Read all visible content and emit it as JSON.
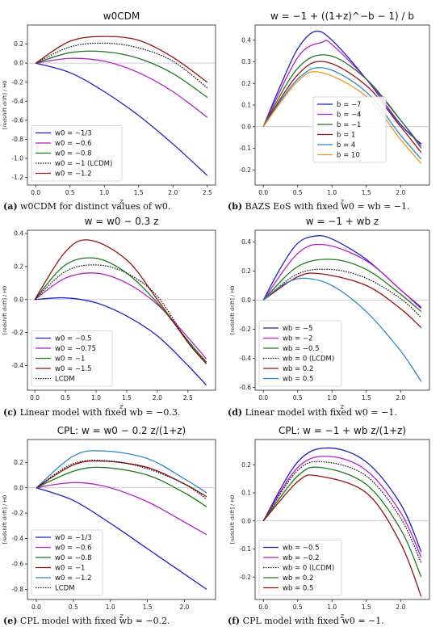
{
  "captions": [
    {
      "letter": "(a)",
      "text": "w0CDM for distinct values of w0."
    },
    {
      "letter": "(b)",
      "text": "BAZS EoS with fixed w0 = wb = −1."
    },
    {
      "letter": "(c)",
      "text": "Linear model with fixed wb = −0.3."
    },
    {
      "letter": "(d)",
      "text": "Linear model with fixed w0 = −1."
    },
    {
      "letter": "(e)",
      "text": "CPL model with fixed wb = −0.2."
    },
    {
      "letter": "(f)",
      "text": "CPL model with fixed w0 = −1."
    }
  ],
  "chart_data": [
    {
      "type": "line",
      "title": "w0CDM",
      "xlabel": "z",
      "ylabel": "[redshift drift] / H0",
      "xlim": [
        -0.12,
        2.62
      ],
      "ylim": [
        -1.28,
        0.4
      ],
      "xticks": [
        0.0,
        0.5,
        1.0,
        1.5,
        2.0,
        2.5
      ],
      "yticks": [
        -1.2,
        -1.0,
        -0.8,
        -0.6,
        -0.4,
        -0.2,
        0.0,
        0.2
      ],
      "legend": "lower-left",
      "series": [
        {
          "name": "w0 = −1/3",
          "color": "#1f1fc8",
          "dash": false,
          "x": [
            0,
            0.5,
            1.0,
            1.5,
            2.0,
            2.5
          ],
          "y": [
            0,
            -0.1,
            -0.3,
            -0.55,
            -0.85,
            -1.18
          ]
        },
        {
          "name": "w0 = −0.6",
          "color": "#b41ec8",
          "dash": false,
          "x": [
            0,
            0.5,
            1.0,
            1.5,
            2.0,
            2.5
          ],
          "y": [
            0,
            0.05,
            0.02,
            -0.1,
            -0.3,
            -0.57
          ]
        },
        {
          "name": "w0 = −0.8",
          "color": "#1e781e",
          "dash": false,
          "x": [
            0,
            0.5,
            1.0,
            1.5,
            2.0,
            2.5
          ],
          "y": [
            0,
            0.11,
            0.12,
            0.05,
            -0.11,
            -0.36
          ]
        },
        {
          "name": "w0 = −1 (LCDM)",
          "color": "#111111",
          "dash": true,
          "x": [
            0,
            0.5,
            1.0,
            1.5,
            2.0,
            2.5
          ],
          "y": [
            0,
            0.17,
            0.21,
            0.16,
            0.02,
            -0.26
          ]
        },
        {
          "name": "w0 = −1.2",
          "color": "#9a1010",
          "dash": false,
          "x": [
            0,
            0.5,
            1.0,
            1.5,
            2.0,
            2.5
          ],
          "y": [
            0,
            0.23,
            0.28,
            0.24,
            0.06,
            -0.2
          ]
        }
      ]
    },
    {
      "type": "line",
      "title": "w = −1 + ((1+z)^−b − 1) / b",
      "xlabel": "z",
      "ylabel": "",
      "xlim": [
        -0.12,
        2.42
      ],
      "ylim": [
        -0.27,
        0.47
      ],
      "xticks": [
        0.0,
        0.5,
        1.0,
        1.5,
        2.0
      ],
      "yticks": [
        -0.2,
        -0.1,
        0.0,
        0.1,
        0.2,
        0.3,
        0.4
      ],
      "legend": "right",
      "series": [
        {
          "name": "b = −7",
          "color": "#1f1fc8",
          "dash": false,
          "x": [
            0,
            0.25,
            0.5,
            0.75,
            1.0,
            1.5,
            2.0,
            2.3
          ],
          "y": [
            0,
            0.19,
            0.36,
            0.44,
            0.4,
            0.22,
            0.01,
            -0.08
          ]
        },
        {
          "name": "b = −4",
          "color": "#b41ec8",
          "dash": false,
          "x": [
            0,
            0.5,
            0.85,
            1.0,
            1.5,
            2.0,
            2.3
          ],
          "y": [
            0,
            0.32,
            0.39,
            0.38,
            0.22,
            0.03,
            -0.09
          ]
        },
        {
          "name": "b = −1",
          "color": "#1e781e",
          "dash": false,
          "x": [
            0,
            0.5,
            0.95,
            1.5,
            2.0,
            2.3
          ],
          "y": [
            0,
            0.27,
            0.33,
            0.22,
            0.03,
            -0.1
          ]
        },
        {
          "name": "b = 1",
          "color": "#9a1010",
          "dash": false,
          "x": [
            0,
            0.5,
            0.9,
            1.5,
            2.0,
            2.3
          ],
          "y": [
            0,
            0.24,
            0.3,
            0.19,
            0.0,
            -0.12
          ]
        },
        {
          "name": "b = 4",
          "color": "#2a88c8",
          "dash": false,
          "x": [
            0,
            0.5,
            0.9,
            1.5,
            2.0,
            2.3
          ],
          "y": [
            0,
            0.22,
            0.27,
            0.16,
            -0.04,
            -0.15
          ]
        },
        {
          "name": "b = 10",
          "color": "#f0961e",
          "dash": false,
          "x": [
            0,
            0.5,
            0.85,
            1.5,
            2.0,
            2.3
          ],
          "y": [
            0,
            0.21,
            0.25,
            0.14,
            -0.06,
            -0.17
          ]
        }
      ]
    },
    {
      "type": "line",
      "title": "w = w0 − 0.3 z",
      "xlabel": "z",
      "ylabel": "[redshift drift] / H0",
      "xlim": [
        -0.12,
        2.95
      ],
      "ylim": [
        -0.55,
        0.42
      ],
      "xticks": [
        0.0,
        0.5,
        1.0,
        1.5,
        2.0,
        2.5
      ],
      "yticks": [
        -0.4,
        -0.2,
        0.0,
        0.2,
        0.4
      ],
      "legend": "lower-left",
      "series": [
        {
          "name": "w0 = −0.5",
          "color": "#1f1fc8",
          "dash": false,
          "x": [
            0,
            0.5,
            1.0,
            1.5,
            2.0,
            2.5,
            2.8
          ],
          "y": [
            0,
            0.01,
            -0.02,
            -0.1,
            -0.22,
            -0.4,
            -0.52
          ]
        },
        {
          "name": "w0 = −0.75",
          "color": "#b41ec8",
          "dash": false,
          "x": [
            0,
            0.5,
            1.0,
            1.5,
            2.0,
            2.5,
            2.8
          ],
          "y": [
            0,
            0.13,
            0.16,
            0.1,
            -0.03,
            -0.23,
            -0.36
          ]
        },
        {
          "name": "w0 = −1",
          "color": "#1e781e",
          "dash": false,
          "x": [
            0,
            0.5,
            1.0,
            1.5,
            2.0,
            2.5,
            2.8
          ],
          "y": [
            0,
            0.21,
            0.25,
            0.16,
            -0.02,
            -0.25,
            -0.38
          ]
        },
        {
          "name": "w0 = −1.5",
          "color": "#9a1010",
          "dash": false,
          "x": [
            0,
            0.5,
            0.9,
            1.5,
            2.0,
            2.5,
            2.8
          ],
          "y": [
            0,
            0.29,
            0.36,
            0.24,
            0.0,
            -0.26,
            -0.39
          ]
        },
        {
          "name": "LCDM",
          "color": "#111111",
          "dash": true,
          "x": [
            0,
            0.5,
            1.0,
            1.5,
            2.0,
            2.5,
            2.8
          ],
          "y": [
            0,
            0.17,
            0.21,
            0.16,
            0.02,
            -0.26,
            -0.38
          ]
        }
      ]
    },
    {
      "type": "line",
      "title": "w = −1 + wb z",
      "xlabel": "z",
      "ylabel": "[redshift drift] / H0",
      "xlim": [
        -0.12,
        2.42
      ],
      "ylim": [
        -0.62,
        0.48
      ],
      "xticks": [
        0.0,
        0.5,
        1.0,
        1.5,
        2.0
      ],
      "yticks": [
        -0.6,
        -0.4,
        -0.2,
        0.0,
        0.2,
        0.4
      ],
      "legend": "lower-left",
      "series": [
        {
          "name": "wb = −5",
          "color": "#1f1fc8",
          "dash": false,
          "x": [
            0,
            0.25,
            0.5,
            0.75,
            1.0,
            1.5,
            2.0,
            2.3
          ],
          "y": [
            0,
            0.22,
            0.39,
            0.44,
            0.42,
            0.28,
            0.07,
            -0.05
          ]
        },
        {
          "name": "wb = −2",
          "color": "#b41ec8",
          "dash": false,
          "x": [
            0,
            0.5,
            0.9,
            1.5,
            2.0,
            2.3
          ],
          "y": [
            0,
            0.32,
            0.38,
            0.27,
            0.07,
            -0.06
          ]
        },
        {
          "name": "wb = −0.5",
          "color": "#1e781e",
          "dash": false,
          "x": [
            0,
            0.5,
            1.0,
            1.5,
            2.0,
            2.3
          ],
          "y": [
            0,
            0.23,
            0.28,
            0.21,
            0.04,
            -0.08
          ]
        },
        {
          "name": "wb = 0 (LCDM)",
          "color": "#111111",
          "dash": true,
          "x": [
            0,
            0.5,
            1.0,
            1.5,
            2.0,
            2.3
          ],
          "y": [
            0,
            0.18,
            0.21,
            0.15,
            0.01,
            -0.12
          ]
        },
        {
          "name": "wb = 0.2",
          "color": "#9a1010",
          "dash": false,
          "x": [
            0,
            0.5,
            0.85,
            1.5,
            2.0,
            2.3
          ],
          "y": [
            0,
            0.16,
            0.18,
            0.1,
            -0.06,
            -0.19
          ]
        },
        {
          "name": "wb = 0.5",
          "color": "#2a88c8",
          "dash": false,
          "x": [
            0,
            0.3,
            0.6,
            1.0,
            1.5,
            2.0,
            2.3
          ],
          "y": [
            0,
            0.11,
            0.15,
            0.1,
            -0.08,
            -0.35,
            -0.56
          ]
        }
      ]
    },
    {
      "type": "line",
      "title": "CPL: w = w0 − 0.2 z/(1+z)",
      "xlabel": "z",
      "ylabel": "[redshift drift] / H0",
      "xlim": [
        -0.12,
        2.42
      ],
      "ylim": [
        -0.88,
        0.38
      ],
      "xticks": [
        0.0,
        0.5,
        1.0,
        1.5,
        2.0
      ],
      "yticks": [
        -0.8,
        -0.6,
        -0.4,
        -0.2,
        0.0,
        0.2
      ],
      "legend": "lower-left",
      "series": [
        {
          "name": "w0 = −1/3",
          "color": "#1f1fc8",
          "dash": false,
          "x": [
            0,
            0.5,
            1.0,
            1.5,
            2.0,
            2.3
          ],
          "y": [
            0,
            -0.1,
            -0.28,
            -0.48,
            -0.68,
            -0.8
          ]
        },
        {
          "name": "w0 = −0.6",
          "color": "#b41ec8",
          "dash": false,
          "x": [
            0,
            0.3,
            0.6,
            1.0,
            1.5,
            2.0,
            2.3
          ],
          "y": [
            0,
            0.03,
            0.04,
            0.0,
            -0.11,
            -0.27,
            -0.37
          ]
        },
        {
          "name": "w0 = −0.8",
          "color": "#1e781e",
          "dash": false,
          "x": [
            0,
            0.5,
            0.9,
            1.5,
            2.0,
            2.3
          ],
          "y": [
            0,
            0.13,
            0.16,
            0.1,
            -0.04,
            -0.15
          ]
        },
        {
          "name": "w0 = −1",
          "color": "#9a1010",
          "dash": false,
          "x": [
            0,
            0.5,
            0.9,
            1.5,
            2.0,
            2.3
          ],
          "y": [
            0,
            0.18,
            0.21,
            0.16,
            0.03,
            -0.07
          ]
        },
        {
          "name": "w0 = −1.2",
          "color": "#2a88c8",
          "dash": false,
          "x": [
            0,
            0.5,
            0.9,
            1.5,
            2.0,
            2.3
          ],
          "y": [
            0,
            0.25,
            0.29,
            0.23,
            0.07,
            -0.04
          ]
        },
        {
          "name": "LCDM",
          "color": "#111111",
          "dash": true,
          "x": [
            0,
            0.5,
            1.0,
            1.5,
            2.0,
            2.3
          ],
          "y": [
            0,
            0.19,
            0.21,
            0.15,
            0.03,
            -0.09
          ]
        }
      ]
    },
    {
      "type": "line",
      "title": "CPL: w = −1 + wb z/(1+z)",
      "xlabel": "z",
      "ylabel": "[redshift drift] / H0",
      "xlim": [
        -0.12,
        2.42
      ],
      "ylim": [
        -0.28,
        0.29
      ],
      "xticks": [
        0.0,
        0.5,
        1.0,
        1.5,
        2.0
      ],
      "yticks": [
        -0.2,
        -0.1,
        0.0,
        0.1,
        0.2
      ],
      "legend": "lower-left",
      "series": [
        {
          "name": "wb = −0.5",
          "color": "#1f1fc8",
          "dash": false,
          "x": [
            0,
            0.5,
            0.95,
            1.5,
            2.0,
            2.3
          ],
          "y": [
            0,
            0.21,
            0.26,
            0.21,
            0.06,
            -0.11
          ]
        },
        {
          "name": "wb = −0.2",
          "color": "#b41ec8",
          "dash": false,
          "x": [
            0,
            0.5,
            0.95,
            1.5,
            2.0,
            2.3
          ],
          "y": [
            0,
            0.19,
            0.23,
            0.18,
            0.03,
            -0.13
          ]
        },
        {
          "name": "wb = 0 (LCDM)",
          "color": "#111111",
          "dash": true,
          "x": [
            0,
            0.5,
            0.9,
            1.5,
            2.0,
            2.3
          ],
          "y": [
            0,
            0.18,
            0.21,
            0.16,
            0.01,
            -0.15
          ]
        },
        {
          "name": "wb = 0.2",
          "color": "#1e781e",
          "dash": false,
          "x": [
            0,
            0.5,
            0.85,
            1.5,
            2.0,
            2.3
          ],
          "y": [
            0,
            0.16,
            0.19,
            0.13,
            -0.03,
            -0.2
          ]
        },
        {
          "name": "wb = 0.5",
          "color": "#9a1010",
          "dash": false,
          "x": [
            0,
            0.5,
            0.8,
            1.5,
            2.0,
            2.3
          ],
          "y": [
            0,
            0.14,
            0.16,
            0.1,
            -0.08,
            -0.27
          ]
        }
      ]
    }
  ]
}
